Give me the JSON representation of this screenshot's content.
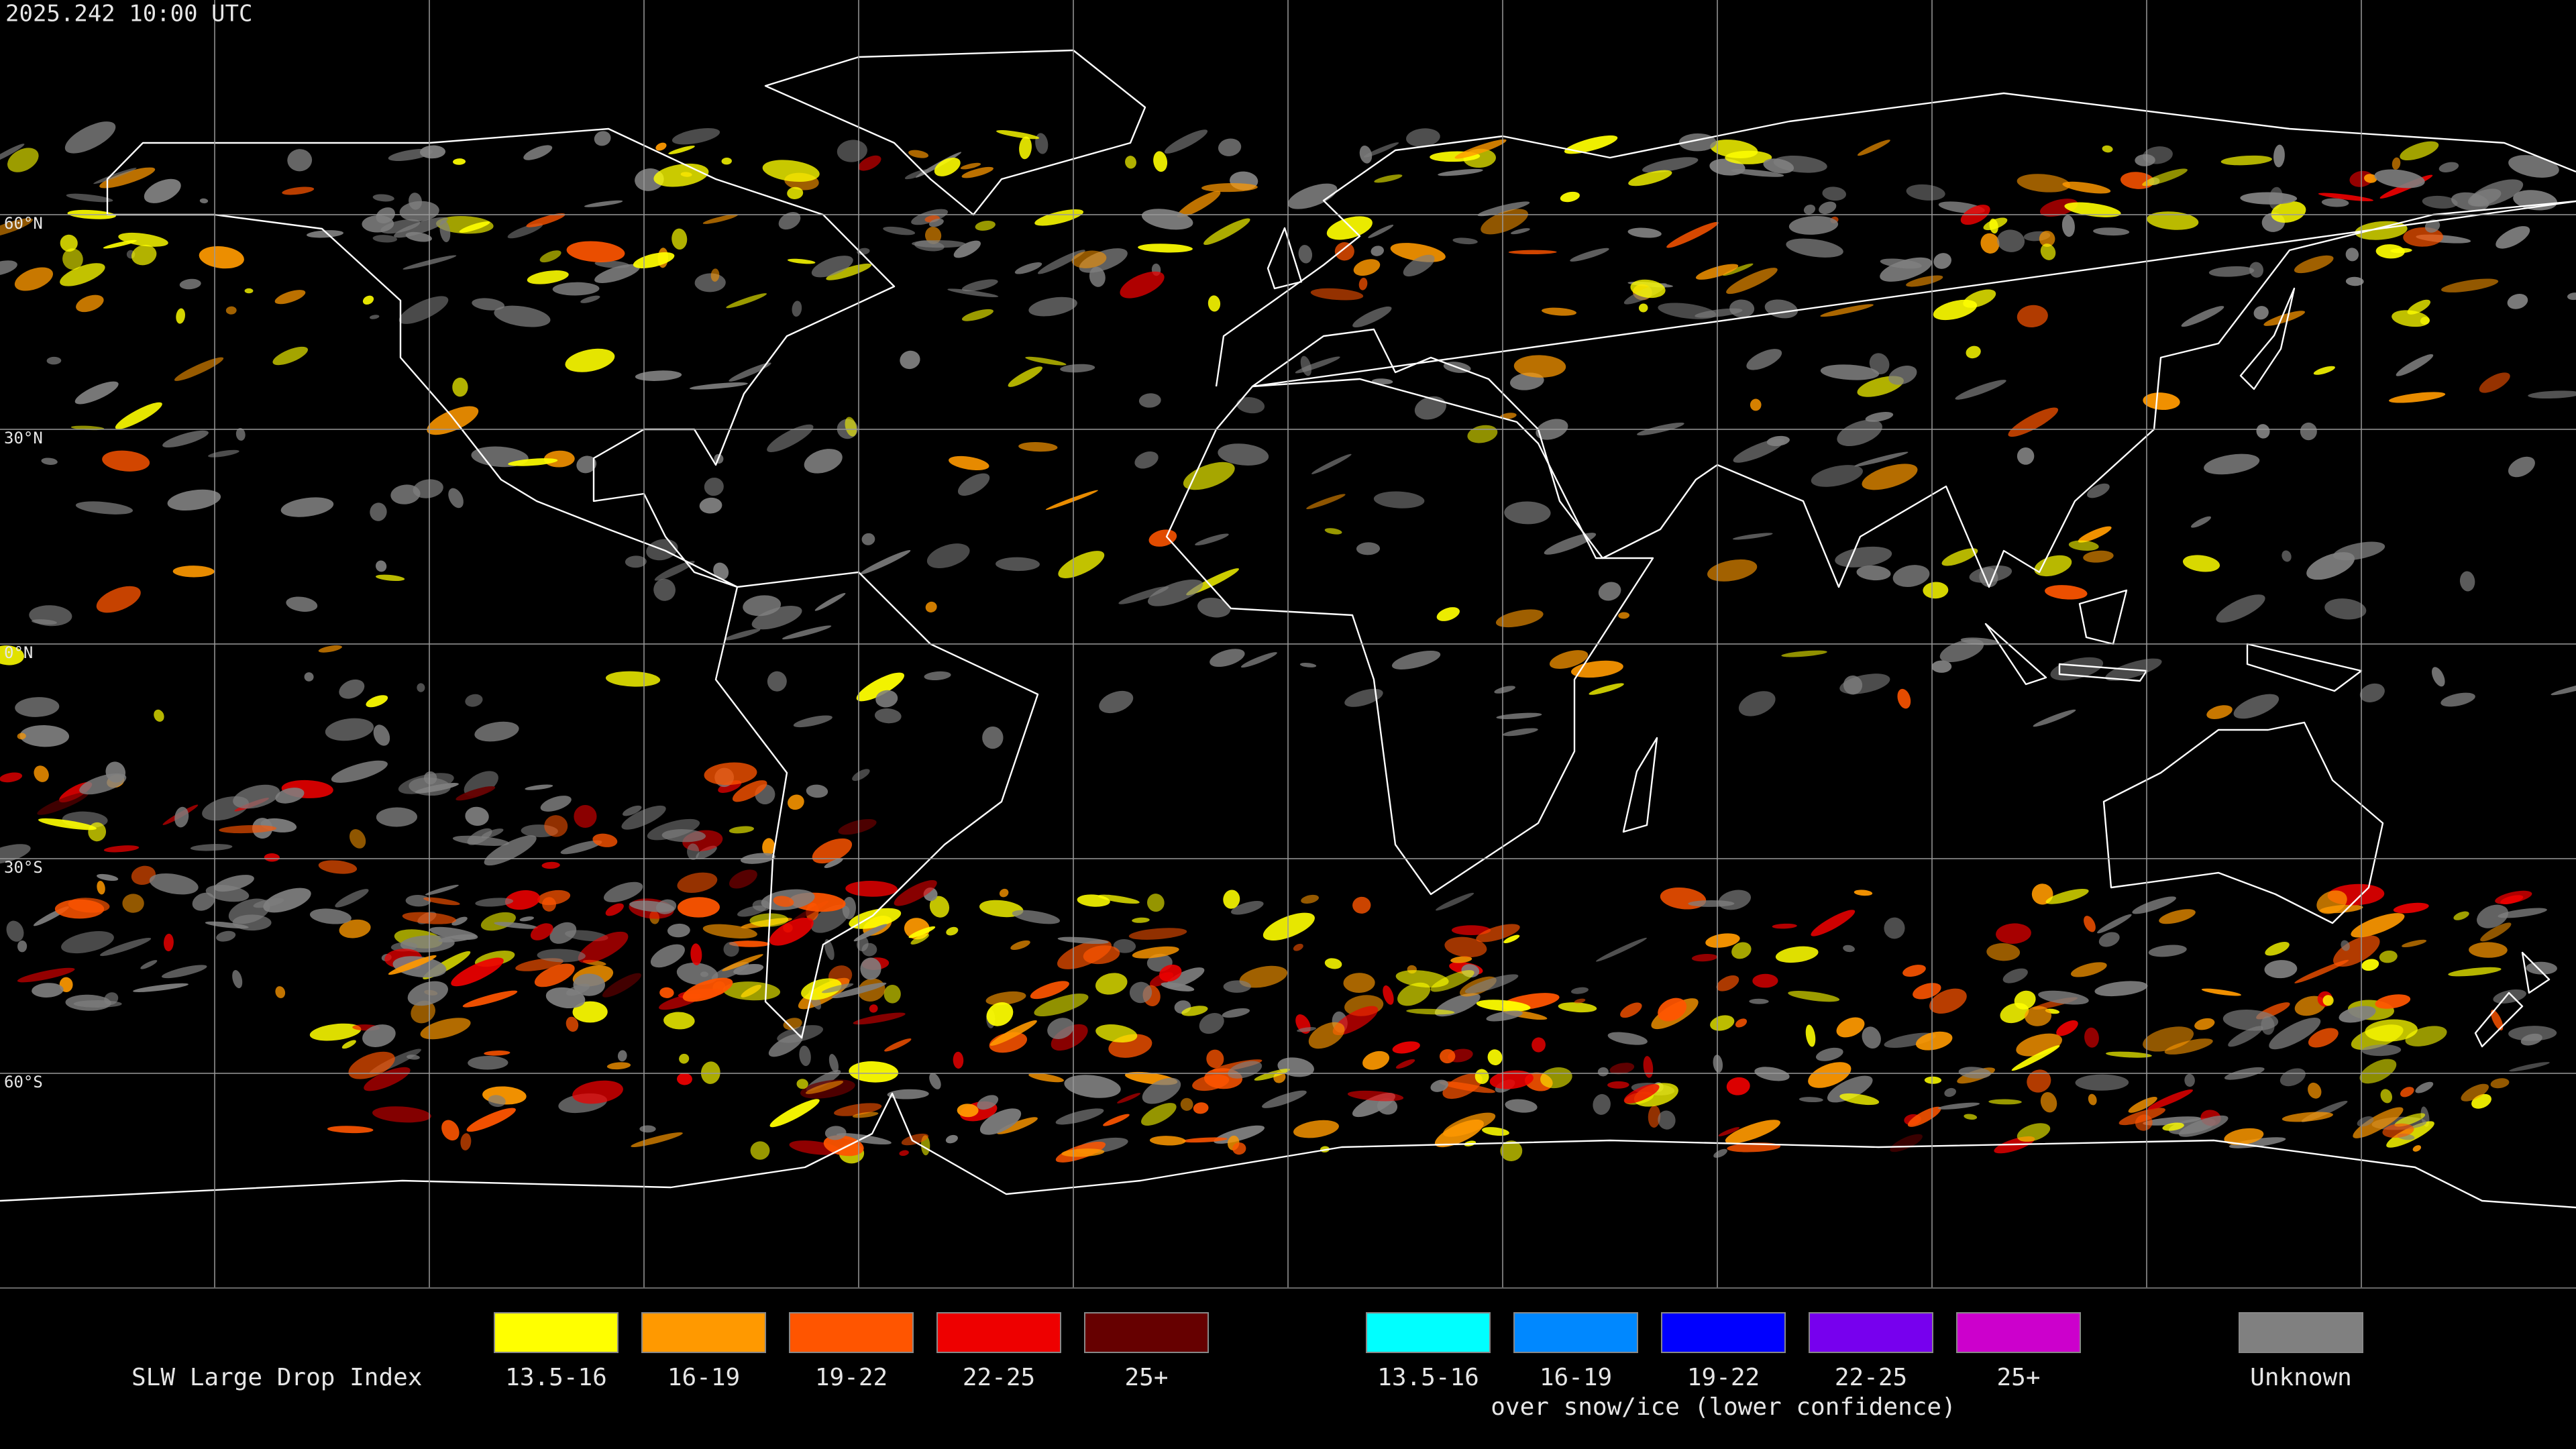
{
  "header": {
    "timestamp": "2025.242 10:00 UTC"
  },
  "map": {
    "lat_labels": [
      "60°N",
      "30°N",
      "0°N",
      "30°S",
      "60°S"
    ]
  },
  "legend": {
    "title": "SLW Large Drop Index",
    "items": [
      {
        "label": "13.5-16",
        "color": "#ffff00"
      },
      {
        "label": "16-19",
        "color": "#ff9900"
      },
      {
        "label": "19-22",
        "color": "#ff5500"
      },
      {
        "label": "22-25",
        "color": "#ee0000"
      },
      {
        "label": "25+",
        "color": "#660000"
      }
    ],
    "snow_items": [
      {
        "label": "13.5-16",
        "color": "#00ffff"
      },
      {
        "label": "16-19",
        "color": "#0088ff"
      },
      {
        "label": "19-22",
        "color": "#0000ff"
      },
      {
        "label": "22-25",
        "color": "#7700ee"
      },
      {
        "label": "25+",
        "color": "#cc00cc"
      }
    ],
    "snow_note": "over snow/ice (lower confidence)",
    "unknown": {
      "label": "Unknown",
      "color": "#808080"
    }
  }
}
